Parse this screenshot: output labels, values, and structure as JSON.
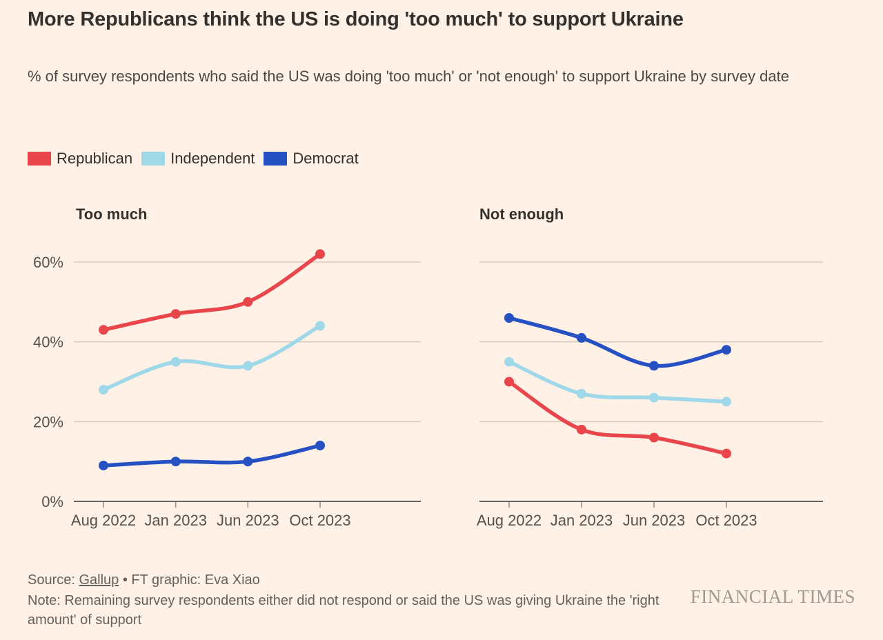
{
  "title": "More Republicans think the US is doing 'too much' to support Ukraine",
  "subtitle": "% of survey respondents who said the US was doing 'too much' or 'not enough' to support Ukraine by survey date",
  "legend": [
    {
      "label": "Republican",
      "color": "#e8464b"
    },
    {
      "label": "Independent",
      "color": "#9fd8e8"
    },
    {
      "label": "Democrat",
      "color": "#2551c3"
    }
  ],
  "chart_data": [
    {
      "type": "line",
      "title": "Too much",
      "categories": [
        "Aug 2022",
        "Jan 2023",
        "Jun 2023",
        "Oct 2023"
      ],
      "yticks": [
        "0%",
        "20%",
        "40%",
        "60%"
      ],
      "ylim": [
        0,
        65
      ],
      "grid": true,
      "legend_position": "top",
      "series": [
        {
          "name": "Republican",
          "color": "#e8464b",
          "values": [
            43,
            47,
            50,
            62
          ]
        },
        {
          "name": "Independent",
          "color": "#9fd8e8",
          "values": [
            28,
            35,
            34,
            44
          ]
        },
        {
          "name": "Democrat",
          "color": "#2551c3",
          "values": [
            9,
            10,
            10,
            14
          ]
        }
      ]
    },
    {
      "type": "line",
      "title": "Not enough",
      "categories": [
        "Aug 2022",
        "Jan 2023",
        "Jun 2023",
        "Oct 2023"
      ],
      "yticks": [
        "0%",
        "20%",
        "40%",
        "60%"
      ],
      "ylim": [
        0,
        65
      ],
      "grid": true,
      "legend_position": "top",
      "series": [
        {
          "name": "Republican",
          "color": "#e8464b",
          "values": [
            30,
            18,
            16,
            12
          ]
        },
        {
          "name": "Independent",
          "color": "#9fd8e8",
          "values": [
            35,
            27,
            26,
            25
          ]
        },
        {
          "name": "Democrat",
          "color": "#2551c3",
          "values": [
            46,
            41,
            34,
            38
          ]
        }
      ]
    }
  ],
  "footer": {
    "source_prefix": "Source: ",
    "source_link": "Gallup",
    "source_suffix": " • FT graphic: Eva Xiao",
    "note": "Note: Remaining survey respondents either did not respond or said the US was giving Ukraine the 'right amount' of support",
    "logo": "FINANCIAL TIMES"
  },
  "colors": {
    "background": "#fff1e5",
    "text": "#33302e",
    "muted_text": "#66605c",
    "tick_label": "#57514d",
    "gridline": "#d8ccbf",
    "zero_axis": "#66605c",
    "republican": "#e8464b",
    "independent": "#9fd8e8",
    "democrat": "#2551c3"
  }
}
